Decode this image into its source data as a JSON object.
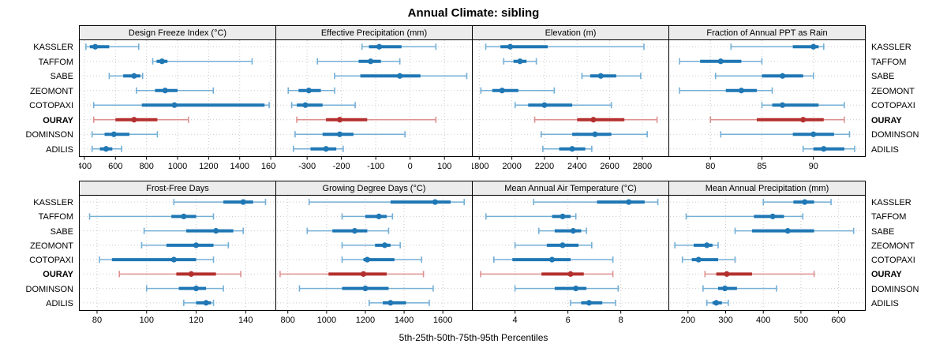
{
  "title": "Annual Climate: sibling",
  "caption": "5th-25th-50th-75th-95th Percentiles",
  "sites": [
    {
      "name": "KASSLER",
      "highlight": false
    },
    {
      "name": "TAFFOM",
      "highlight": false
    },
    {
      "name": "SABE",
      "highlight": false
    },
    {
      "name": "ZEOMONT",
      "highlight": false
    },
    {
      "name": "COTOPAXI",
      "highlight": false
    },
    {
      "name": "OURAY",
      "highlight": true
    },
    {
      "name": "DOMINSON",
      "highlight": false
    },
    {
      "name": "ADILIS",
      "highlight": false
    }
  ],
  "colors": {
    "normal_strong": "#1f77b4",
    "normal_light": "#74afd6",
    "highlight_strong": "#b4302e",
    "highlight_light": "#de918f",
    "grid": "#c9c9c9",
    "header_bg": "#ececec",
    "border": "#000000"
  },
  "chart_data": [
    {
      "type": "dot-interval",
      "row": 0,
      "title": "Design Freeze Index (°C)",
      "xlim": [
        370,
        1630
      ],
      "ticks": [
        400,
        600,
        800,
        1000,
        1200,
        1400,
        1600
      ],
      "percentile_labels": [
        "5th",
        "25th",
        "50th",
        "75th",
        "95th"
      ],
      "series": [
        {
          "site": "KASSLER",
          "percentiles": [
            410,
            435,
            470,
            560,
            750
          ]
        },
        {
          "site": "TAFFOM",
          "percentiles": [
            840,
            865,
            900,
            935,
            1480
          ]
        },
        {
          "site": "SABE",
          "percentiles": [
            560,
            650,
            720,
            760,
            775
          ]
        },
        {
          "site": "ZEOMONT",
          "percentiles": [
            735,
            855,
            920,
            1000,
            1230
          ]
        },
        {
          "site": "COTOPAXI",
          "percentiles": [
            460,
            770,
            980,
            1560,
            1590
          ]
        },
        {
          "site": "OURAY",
          "percentiles": [
            460,
            600,
            720,
            870,
            1070
          ]
        },
        {
          "site": "DOMINSON",
          "percentiles": [
            450,
            530,
            590,
            690,
            870
          ]
        },
        {
          "site": "ADILIS",
          "percentiles": [
            450,
            500,
            540,
            580,
            640
          ]
        }
      ]
    },
    {
      "type": "dot-interval",
      "row": 0,
      "title": "Effective Precipitation (mm)",
      "xlim": [
        -390,
        180
      ],
      "ticks": [
        -300,
        -200,
        -100,
        0,
        100
      ],
      "percentile_labels": [
        "5th",
        "25th",
        "50th",
        "75th",
        "95th"
      ],
      "series": [
        {
          "site": "KASSLER",
          "percentiles": [
            -140,
            -120,
            -90,
            -25,
            75
          ]
        },
        {
          "site": "TAFFOM",
          "percentiles": [
            -270,
            -150,
            -115,
            -85,
            -30
          ]
        },
        {
          "site": "SABE",
          "percentiles": [
            -220,
            -145,
            -30,
            30,
            165
          ]
        },
        {
          "site": "ZEOMONT",
          "percentiles": [
            -355,
            -325,
            -295,
            -260,
            -220
          ]
        },
        {
          "site": "COTOPAXI",
          "percentiles": [
            -345,
            -330,
            -305,
            -255,
            -160
          ]
        },
        {
          "site": "OURAY",
          "percentiles": [
            -330,
            -245,
            -205,
            -125,
            75
          ]
        },
        {
          "site": "DOMINSON",
          "percentiles": [
            -335,
            -255,
            -205,
            -165,
            -15
          ]
        },
        {
          "site": "ADILIS",
          "percentiles": [
            -340,
            -290,
            -245,
            -215,
            -195
          ]
        }
      ]
    },
    {
      "type": "dot-interval",
      "row": 0,
      "title": "Elevation (m)",
      "xlim": [
        1760,
        2960
      ],
      "ticks": [
        1800,
        2000,
        2200,
        2400,
        2600,
        2800
      ],
      "percentile_labels": [
        "5th",
        "25th",
        "50th",
        "75th",
        "95th"
      ],
      "series": [
        {
          "site": "KASSLER",
          "percentiles": [
            1840,
            1930,
            1990,
            2220,
            2810
          ]
        },
        {
          "site": "TAFFOM",
          "percentiles": [
            1950,
            2010,
            2050,
            2090,
            2150
          ]
        },
        {
          "site": "SABE",
          "percentiles": [
            2430,
            2480,
            2545,
            2640,
            2790
          ]
        },
        {
          "site": "ZEOMONT",
          "percentiles": [
            1810,
            1880,
            1940,
            2040,
            2260
          ]
        },
        {
          "site": "COTOPAXI",
          "percentiles": [
            2020,
            2100,
            2200,
            2370,
            2610
          ]
        },
        {
          "site": "OURAY",
          "percentiles": [
            2140,
            2400,
            2500,
            2690,
            2890
          ]
        },
        {
          "site": "DOMINSON",
          "percentiles": [
            2180,
            2370,
            2510,
            2610,
            2830
          ]
        },
        {
          "site": "ADILIS",
          "percentiles": [
            2190,
            2290,
            2370,
            2450,
            2490
          ]
        }
      ]
    },
    {
      "type": "dot-interval",
      "row": 0,
      "title": "Fraction of Annual PPT as Rain",
      "xlim": [
        76,
        95
      ],
      "ticks": [
        80,
        85,
        90
      ],
      "percentile_labels": [
        "5th",
        "25th",
        "50th",
        "75th",
        "95th"
      ],
      "series": [
        {
          "site": "KASSLER",
          "percentiles": [
            82,
            88,
            90,
            90.5,
            91
          ]
        },
        {
          "site": "TAFFOM",
          "percentiles": [
            77,
            79,
            81,
            83,
            85
          ]
        },
        {
          "site": "SABE",
          "percentiles": [
            80.5,
            85,
            87,
            89,
            90
          ]
        },
        {
          "site": "ZEOMONT",
          "percentiles": [
            77,
            81.5,
            83,
            84.5,
            86
          ]
        },
        {
          "site": "COTOPAXI",
          "percentiles": [
            85,
            86,
            87,
            90.5,
            93
          ]
        },
        {
          "site": "OURAY",
          "percentiles": [
            80,
            84.5,
            89,
            91,
            93
          ]
        },
        {
          "site": "DOMINSON",
          "percentiles": [
            81,
            88,
            90,
            92,
            93.5
          ]
        },
        {
          "site": "ADILIS",
          "percentiles": [
            89,
            90,
            91,
            93,
            94
          ]
        }
      ]
    },
    {
      "type": "dot-interval",
      "row": 1,
      "title": "Frost-Free Days",
      "xlim": [
        73,
        152
      ],
      "ticks": [
        80,
        100,
        120,
        140
      ],
      "percentile_labels": [
        "5th",
        "25th",
        "50th",
        "75th",
        "95th"
      ],
      "series": [
        {
          "site": "KASSLER",
          "percentiles": [
            111,
            131,
            139,
            143,
            148
          ]
        },
        {
          "site": "TAFFOM",
          "percentiles": [
            77,
            110,
            115,
            120,
            127
          ]
        },
        {
          "site": "SABE",
          "percentiles": [
            99,
            116,
            128,
            135,
            139
          ]
        },
        {
          "site": "ZEOMONT",
          "percentiles": [
            98,
            108,
            120,
            127,
            133
          ]
        },
        {
          "site": "COTOPAXI",
          "percentiles": [
            81,
            86,
            111,
            120,
            127
          ]
        },
        {
          "site": "OURAY",
          "percentiles": [
            89,
            112,
            118,
            128,
            138
          ]
        },
        {
          "site": "DOMINSON",
          "percentiles": [
            100,
            113,
            120,
            124,
            131
          ]
        },
        {
          "site": "ADILIS",
          "percentiles": [
            115,
            120,
            124,
            126,
            127
          ]
        }
      ]
    },
    {
      "type": "dot-interval",
      "row": 1,
      "title": "Growing Degree Days (°C)",
      "xlim": [
        740,
        1750
      ],
      "ticks": [
        800,
        1000,
        1200,
        1400,
        1600
      ],
      "percentile_labels": [
        "5th",
        "25th",
        "50th",
        "75th",
        "95th"
      ],
      "series": [
        {
          "site": "KASSLER",
          "percentiles": [
            910,
            1330,
            1560,
            1640,
            1710
          ]
        },
        {
          "site": "TAFFOM",
          "percentiles": [
            1080,
            1200,
            1270,
            1310,
            1340
          ]
        },
        {
          "site": "SABE",
          "percentiles": [
            900,
            1030,
            1145,
            1210,
            1320
          ]
        },
        {
          "site": "ZEOMONT",
          "percentiles": [
            1080,
            1250,
            1300,
            1330,
            1380
          ]
        },
        {
          "site": "COTOPAXI",
          "percentiles": [
            1080,
            1190,
            1210,
            1350,
            1490
          ]
        },
        {
          "site": "OURAY",
          "percentiles": [
            760,
            1010,
            1190,
            1310,
            1500
          ]
        },
        {
          "site": "DOMINSON",
          "percentiles": [
            860,
            1080,
            1200,
            1320,
            1550
          ]
        },
        {
          "site": "ADILIS",
          "percentiles": [
            1220,
            1290,
            1330,
            1410,
            1530
          ]
        }
      ]
    },
    {
      "type": "dot-interval",
      "row": 1,
      "title": "Mean Annual Air Temperature (°C)",
      "xlim": [
        2.4,
        9.8
      ],
      "ticks": [
        4,
        6,
        8
      ],
      "percentile_labels": [
        "5th",
        "25th",
        "50th",
        "75th",
        "95th"
      ],
      "series": [
        {
          "site": "KASSLER",
          "percentiles": [
            4.7,
            7.1,
            8.3,
            8.9,
            9.4
          ]
        },
        {
          "site": "TAFFOM",
          "percentiles": [
            2.9,
            5.4,
            5.8,
            6.1,
            6.3
          ]
        },
        {
          "site": "SABE",
          "percentiles": [
            4.9,
            5.5,
            6.2,
            6.5,
            6.7
          ]
        },
        {
          "site": "ZEOMONT",
          "percentiles": [
            4.0,
            5.2,
            5.8,
            6.4,
            6.9
          ]
        },
        {
          "site": "COTOPAXI",
          "percentiles": [
            3.2,
            3.9,
            5.4,
            6.1,
            7.7
          ]
        },
        {
          "site": "OURAY",
          "percentiles": [
            2.7,
            5.0,
            6.1,
            6.6,
            7.7
          ]
        },
        {
          "site": "DOMINSON",
          "percentiles": [
            4.0,
            5.5,
            6.3,
            6.7,
            7.9
          ]
        },
        {
          "site": "ADILIS",
          "percentiles": [
            6.1,
            6.5,
            6.8,
            7.3,
            7.8
          ]
        }
      ]
    },
    {
      "type": "dot-interval",
      "row": 1,
      "title": "Mean Annual Precipitation (mm)",
      "xlim": [
        150,
        670
      ],
      "ticks": [
        200,
        300,
        400,
        500,
        600
      ],
      "percentile_labels": [
        "5th",
        "25th",
        "50th",
        "75th",
        "95th"
      ],
      "series": [
        {
          "site": "KASSLER",
          "percentiles": [
            400,
            480,
            510,
            535,
            580
          ]
        },
        {
          "site": "TAFFOM",
          "percentiles": [
            195,
            375,
            425,
            455,
            505
          ]
        },
        {
          "site": "SABE",
          "percentiles": [
            325,
            370,
            465,
            535,
            640
          ]
        },
        {
          "site": "ZEOMONT",
          "percentiles": [
            165,
            215,
            250,
            265,
            280
          ]
        },
        {
          "site": "COTOPAXI",
          "percentiles": [
            185,
            210,
            228,
            280,
            325
          ]
        },
        {
          "site": "OURAY",
          "percentiles": [
            245,
            275,
            303,
            370,
            535
          ]
        },
        {
          "site": "DOMINSON",
          "percentiles": [
            240,
            280,
            298,
            330,
            435
          ]
        },
        {
          "site": "ADILIS",
          "percentiles": [
            250,
            265,
            275,
            290,
            307
          ]
        }
      ]
    }
  ]
}
